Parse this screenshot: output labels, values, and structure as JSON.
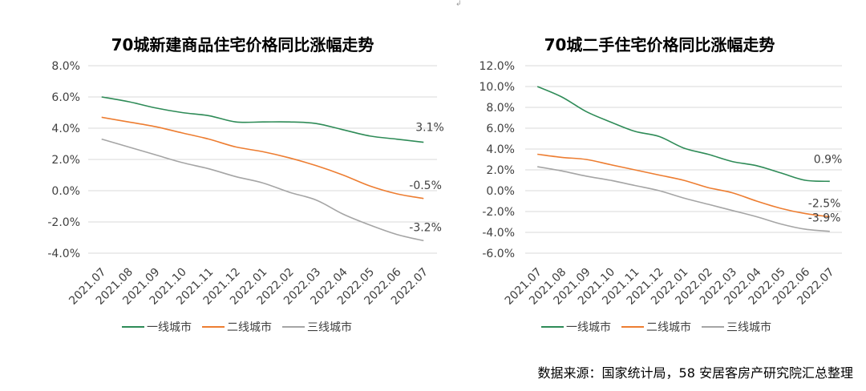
{
  "colors": {
    "tier1": "#2e8b57",
    "tier2": "#ed7d31",
    "tier3": "#a5a5a5",
    "grid": "#d9d9d9",
    "text": "#404040"
  },
  "top_mark": "↲",
  "source": "数据来源：国家统计局，58 安居客房产研究院汇总整理",
  "chart_data": [
    {
      "type": "line",
      "title": "70城新建商品住宅价格同比涨幅走势",
      "categories": [
        "2021.07",
        "2021.08",
        "2021.09",
        "2021.10",
        "2021.11",
        "2021.12",
        "2022.01",
        "2022.02",
        "2022.03",
        "2022.04",
        "2022.05",
        "2022.06",
        "2022.07"
      ],
      "ylim": [
        -4.0,
        8.0
      ],
      "yticks": [
        -4.0,
        -2.0,
        0.0,
        2.0,
        4.0,
        6.0,
        8.0
      ],
      "ytick_labels": [
        "-4.0%",
        "-2.0%",
        "0.0%",
        "2.0%",
        "4.0%",
        "6.0%",
        "8.0%"
      ],
      "grid": true,
      "legend_position": "bottom",
      "series": [
        {
          "name": "一线城市",
          "color_key": "tier1",
          "values": [
            6.0,
            5.7,
            5.3,
            5.0,
            4.8,
            4.4,
            4.4,
            4.4,
            4.3,
            3.9,
            3.5,
            3.3,
            3.1
          ],
          "end_label": "3.1%"
        },
        {
          "name": "二线城市",
          "color_key": "tier2",
          "values": [
            4.7,
            4.4,
            4.1,
            3.7,
            3.3,
            2.8,
            2.5,
            2.1,
            1.6,
            1.0,
            0.3,
            -0.2,
            -0.5
          ],
          "end_label": "-0.5%"
        },
        {
          "name": "三线城市",
          "color_key": "tier3",
          "values": [
            3.3,
            2.8,
            2.3,
            1.8,
            1.4,
            0.9,
            0.5,
            -0.1,
            -0.6,
            -1.5,
            -2.2,
            -2.8,
            -3.2
          ],
          "end_label": "-3.2%"
        }
      ]
    },
    {
      "type": "line",
      "title": "70城二手住宅价格同比涨幅走势",
      "categories": [
        "2021.07",
        "2021.08",
        "2021.09",
        "2021.10",
        "2021.11",
        "2021.12",
        "2022.01",
        "2022.02",
        "2022.03",
        "2022.04",
        "2022.05",
        "2022.06",
        "2022.07"
      ],
      "ylim": [
        -6.0,
        12.0
      ],
      "yticks": [
        -6.0,
        -4.0,
        -2.0,
        0.0,
        2.0,
        4.0,
        6.0,
        8.0,
        10.0,
        12.0
      ],
      "ytick_labels": [
        "-6.0%",
        "-4.0%",
        "-2.0%",
        "0.0%",
        "2.0%",
        "4.0%",
        "6.0%",
        "8.0%",
        "10.0%",
        "12.0%"
      ],
      "grid": true,
      "legend_position": "bottom",
      "series": [
        {
          "name": "一线城市",
          "color_key": "tier1",
          "values": [
            10.0,
            9.0,
            7.6,
            6.6,
            5.7,
            5.2,
            4.1,
            3.5,
            2.8,
            2.4,
            1.7,
            1.0,
            0.9
          ],
          "end_label": "0.9%"
        },
        {
          "name": "二线城市",
          "color_key": "tier2",
          "values": [
            3.5,
            3.2,
            3.0,
            2.5,
            2.0,
            1.5,
            1.0,
            0.3,
            -0.2,
            -1.0,
            -1.7,
            -2.2,
            -2.5
          ],
          "end_label": "-2.5%"
        },
        {
          "name": "三线城市",
          "color_key": "tier3",
          "values": [
            2.3,
            1.9,
            1.4,
            1.0,
            0.5,
            0.0,
            -0.7,
            -1.3,
            -1.9,
            -2.5,
            -3.2,
            -3.7,
            -3.9
          ],
          "end_label": "-3.9%"
        }
      ]
    }
  ]
}
